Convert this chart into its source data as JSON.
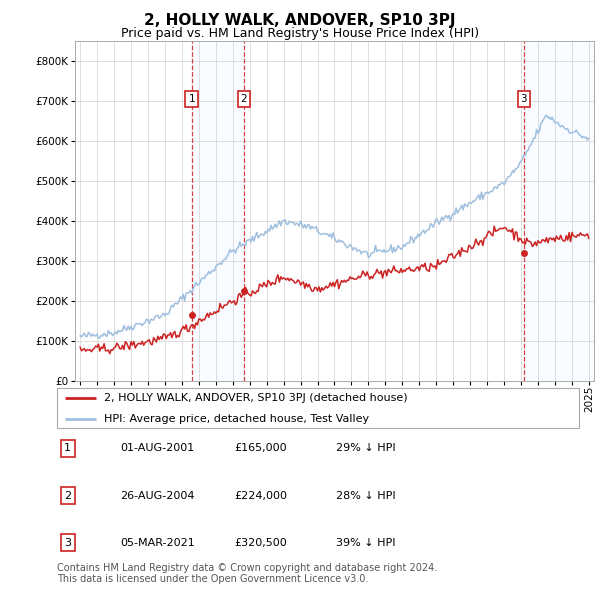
{
  "title": "2, HOLLY WALK, ANDOVER, SP10 3PJ",
  "subtitle": "Price paid vs. HM Land Registry's House Price Index (HPI)",
  "ylim": [
    0,
    850000
  ],
  "yticks": [
    0,
    100000,
    200000,
    300000,
    400000,
    500000,
    600000,
    700000,
    800000
  ],
  "ytick_labels": [
    "£0",
    "£100K",
    "£200K",
    "£300K",
    "£400K",
    "£500K",
    "£600K",
    "£700K",
    "£800K"
  ],
  "hpi_color": "#a0bfdf",
  "price_color": "#cc2222",
  "vline_color": "#cc2222",
  "shade_color": "#ddeeff",
  "transactions": [
    {
      "label": "1",
      "date_num": 2001.58,
      "price": 165000,
      "note": "01-AUG-2001",
      "pct": "29% ↓ HPI"
    },
    {
      "label": "2",
      "date_num": 2004.65,
      "price": 224000,
      "note": "26-AUG-2004",
      "pct": "28% ↓ HPI"
    },
    {
      "label": "3",
      "date_num": 2021.17,
      "price": 320500,
      "note": "05-MAR-2021",
      "pct": "39% ↓ HPI"
    }
  ],
  "legend_line1": "2, HOLLY WALK, ANDOVER, SP10 3PJ (detached house)",
  "legend_line2": "HPI: Average price, detached house, Test Valley",
  "footnote1": "Contains HM Land Registry data © Crown copyright and database right 2024.",
  "footnote2": "This data is licensed under the Open Government Licence v3.0.",
  "title_fontsize": 11,
  "subtitle_fontsize": 9,
  "tick_fontsize": 7.5,
  "legend_fontsize": 8,
  "footnote_fontsize": 7,
  "xstart": 1995,
  "xend": 2025
}
